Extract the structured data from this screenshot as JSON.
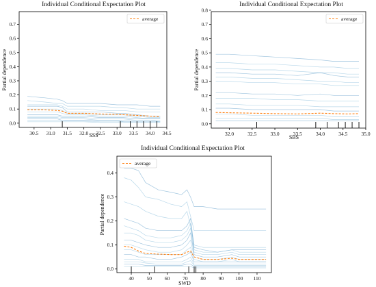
{
  "colors": {
    "ice": "#7fb8d8",
    "ice_dark": "#2c7fb8",
    "average": "#ff7f0e",
    "axis": "#000000"
  },
  "chart_data": [
    {
      "type": "line",
      "title": "Individual Conditional Expectation Plot",
      "xlabel": "SSS",
      "ylabel": "Partial dependence",
      "xlim": [
        30.05,
        34.5
      ],
      "ylim": [
        -0.03,
        0.79
      ],
      "xticks": [
        "30.5",
        "31.0",
        "31.5",
        "32.0",
        "32.5",
        "33.0",
        "33.5",
        "34.0",
        "34.5"
      ],
      "yticks": [
        "0.0",
        "0.1",
        "0.2",
        "0.3",
        "0.4",
        "0.5",
        "0.6",
        "0.7"
      ],
      "legend": {
        "label": "average",
        "placement": "top-right"
      },
      "x": [
        30.3,
        30.8,
        31.2,
        31.35,
        31.5,
        32.0,
        32.5,
        33.0,
        33.2,
        33.6,
        34.0,
        34.3
      ],
      "average": [
        0.095,
        0.095,
        0.09,
        0.085,
        0.07,
        0.07,
        0.065,
        0.062,
        0.06,
        0.055,
        0.05,
        0.045
      ],
      "series": [
        {
          "values": [
            0.19,
            0.18,
            0.17,
            0.16,
            0.14,
            0.14,
            0.14,
            0.13,
            0.13,
            0.13,
            0.12,
            0.12
          ]
        },
        {
          "values": [
            0.16,
            0.15,
            0.14,
            0.14,
            0.12,
            0.12,
            0.12,
            0.11,
            0.11,
            0.1,
            0.1,
            0.1
          ]
        },
        {
          "values": [
            0.13,
            0.13,
            0.13,
            0.12,
            0.1,
            0.1,
            0.09,
            0.09,
            0.09,
            0.08,
            0.08,
            0.08
          ]
        },
        {
          "values": [
            0.12,
            0.12,
            0.12,
            0.11,
            0.08,
            0.08,
            0.08,
            0.07,
            0.07,
            0.06,
            0.05,
            0.05
          ]
        },
        {
          "values": [
            0.1,
            0.1,
            0.1,
            0.09,
            0.07,
            0.07,
            0.06,
            0.06,
            0.06,
            0.05,
            0.04,
            0.04
          ]
        },
        {
          "values": [
            0.08,
            0.08,
            0.08,
            0.07,
            0.06,
            0.06,
            0.05,
            0.05,
            0.05,
            0.04,
            0.03,
            0.03
          ]
        },
        {
          "values": [
            0.06,
            0.06,
            0.06,
            0.05,
            0.05,
            0.05,
            0.04,
            0.04,
            0.04,
            0.03,
            0.03,
            0.03
          ]
        },
        {
          "values": [
            0.05,
            0.05,
            0.05,
            0.04,
            0.04,
            0.04,
            0.03,
            0.03,
            0.03,
            0.02,
            0.02,
            0.02
          ]
        },
        {
          "values": [
            0.04,
            0.04,
            0.04,
            0.03,
            0.03,
            0.03,
            0.02,
            0.02,
            0.02,
            0.02,
            0.02,
            0.01
          ]
        },
        {
          "values": [
            0.03,
            0.03,
            0.03,
            0.02,
            0.02,
            0.02,
            0.02,
            0.02,
            0.01,
            0.01,
            0.01,
            0.01
          ]
        },
        {
          "values": [
            0.02,
            0.02,
            0.02,
            0.02,
            0.015,
            0.015,
            0.01,
            0.01,
            0.01,
            0.01,
            0.01,
            0.01
          ]
        },
        {
          "values": [
            0.01,
            0.01,
            0.01,
            0.01,
            0.01,
            0.01,
            0.005,
            0.005,
            0.005,
            0.005,
            0.005,
            0.005
          ]
        }
      ],
      "rug": [
        31.35,
        33.1,
        33.4,
        33.6,
        33.8,
        34.0,
        34.2
      ]
    },
    {
      "type": "line",
      "title": "Individual Conditional Expectation Plot",
      "xlabel": "SBS",
      "ylabel": "Partial dependence",
      "xlim": [
        31.6,
        35.0
      ],
      "ylim": [
        -0.03,
        0.79
      ],
      "xticks": [
        "32.0",
        "32.5",
        "33.0",
        "33.5",
        "34.0",
        "34.5",
        "35.0"
      ],
      "yticks": [
        "0.0",
        "0.1",
        "0.2",
        "0.3",
        "0.4",
        "0.5",
        "0.6",
        "0.7",
        "0.8"
      ],
      "legend": {
        "label": "average",
        "placement": "top-right"
      },
      "x": [
        31.7,
        32.0,
        32.5,
        33.0,
        33.5,
        34.0,
        34.3,
        34.6,
        34.85
      ],
      "average": [
        0.08,
        0.078,
        0.075,
        0.072,
        0.07,
        0.075,
        0.072,
        0.07,
        0.072
      ],
      "series": [
        {
          "values": [
            0.49,
            0.49,
            0.48,
            0.47,
            0.46,
            0.45,
            0.44,
            0.44,
            0.44
          ]
        },
        {
          "values": [
            0.43,
            0.43,
            0.42,
            0.42,
            0.41,
            0.4,
            0.4,
            0.39,
            0.39
          ]
        },
        {
          "values": [
            0.39,
            0.39,
            0.38,
            0.38,
            0.37,
            0.36,
            0.36,
            0.35,
            0.35
          ]
        },
        {
          "values": [
            0.36,
            0.36,
            0.35,
            0.35,
            0.34,
            0.36,
            0.34,
            0.33,
            0.33
          ]
        },
        {
          "values": [
            0.33,
            0.33,
            0.32,
            0.32,
            0.31,
            0.3,
            0.3,
            0.29,
            0.29
          ]
        },
        {
          "values": [
            0.3,
            0.3,
            0.29,
            0.29,
            0.28,
            0.28,
            0.27,
            0.27,
            0.27
          ]
        },
        {
          "values": [
            0.22,
            0.22,
            0.21,
            0.21,
            0.2,
            0.21,
            0.2,
            0.2,
            0.2
          ]
        },
        {
          "values": [
            0.18,
            0.18,
            0.18,
            0.17,
            0.17,
            0.16,
            0.16,
            0.16,
            0.16
          ]
        },
        {
          "values": [
            0.14,
            0.14,
            0.13,
            0.13,
            0.13,
            0.12,
            0.12,
            0.12,
            0.12
          ]
        },
        {
          "values": [
            0.11,
            0.11,
            0.1,
            0.1,
            0.1,
            0.1,
            0.09,
            0.09,
            0.09
          ]
        },
        {
          "values": [
            0.07,
            0.07,
            0.06,
            0.06,
            0.06,
            0.06,
            0.05,
            0.05,
            0.05
          ]
        },
        {
          "values": [
            0.04,
            0.04,
            0.04,
            0.04,
            0.04,
            0.04,
            0.03,
            0.03,
            0.03
          ]
        },
        {
          "values": [
            0.02,
            0.02,
            0.02,
            0.02,
            0.02,
            0.02,
            0.02,
            0.02,
            0.02
          ]
        }
      ],
      "rug": [
        32.6,
        33.9,
        34.15,
        34.4,
        34.55,
        34.7,
        34.85
      ]
    },
    {
      "type": "line",
      "title": "Individual Conditional Expectation Plot",
      "xlabel": "SWD",
      "ylabel": "Partial dependence",
      "xlim": [
        32,
        118
      ],
      "ylim": [
        -0.015,
        0.47
      ],
      "xticks": [
        "40",
        "50",
        "60",
        "70",
        "80",
        "90",
        "100",
        "110"
      ],
      "yticks": [
        "0.0",
        "0.1",
        "0.2",
        "0.3",
        "0.4"
      ],
      "legend": {
        "label": "average",
        "placement": "top-left"
      },
      "x": [
        36,
        40,
        44,
        48,
        55,
        62,
        68,
        71,
        73,
        75,
        80,
        88,
        96,
        100,
        108,
        115
      ],
      "average": [
        0.095,
        0.09,
        0.075,
        0.065,
        0.062,
        0.06,
        0.06,
        0.07,
        0.075,
        0.05,
        0.04,
        0.04,
        0.045,
        0.04,
        0.04,
        0.04
      ],
      "series": [
        {
          "values": [
            0.42,
            0.42,
            0.41,
            0.36,
            0.33,
            0.32,
            0.31,
            0.33,
            0.3,
            0.26,
            0.26,
            0.25,
            0.25,
            0.25,
            0.25,
            0.25
          ]
        },
        {
          "values": [
            0.38,
            0.37,
            0.34,
            0.3,
            0.29,
            0.27,
            0.26,
            0.28,
            0.22,
            0.16,
            0.16,
            0.16,
            0.16,
            0.16,
            0.16,
            0.16
          ]
        },
        {
          "values": [
            0.28,
            0.27,
            0.26,
            0.24,
            0.22,
            0.21,
            0.21,
            0.24,
            0.18,
            0.1,
            0.09,
            0.09,
            0.09,
            0.09,
            0.09,
            0.09
          ]
        },
        {
          "values": [
            0.21,
            0.2,
            0.19,
            0.17,
            0.16,
            0.16,
            0.16,
            0.18,
            0.21,
            0.09,
            0.08,
            0.07,
            0.08,
            0.08,
            0.08,
            0.08
          ]
        },
        {
          "values": [
            0.18,
            0.17,
            0.16,
            0.14,
            0.13,
            0.13,
            0.14,
            0.16,
            0.19,
            0.08,
            0.07,
            0.07,
            0.08,
            0.07,
            0.07,
            0.07
          ]
        },
        {
          "values": [
            0.15,
            0.15,
            0.14,
            0.12,
            0.11,
            0.11,
            0.12,
            0.14,
            0.17,
            0.07,
            0.06,
            0.06,
            0.07,
            0.06,
            0.06,
            0.06
          ]
        },
        {
          "values": [
            0.12,
            0.12,
            0.11,
            0.1,
            0.09,
            0.09,
            0.1,
            0.12,
            0.15,
            0.06,
            0.05,
            0.05,
            0.06,
            0.05,
            0.05,
            0.05
          ]
        },
        {
          "values": [
            0.1,
            0.1,
            0.09,
            0.08,
            0.07,
            0.07,
            0.08,
            0.1,
            0.12,
            0.05,
            0.04,
            0.04,
            0.05,
            0.04,
            0.04,
            0.04
          ]
        },
        {
          "values": [
            0.08,
            0.08,
            0.07,
            0.06,
            0.06,
            0.06,
            0.06,
            0.08,
            0.09,
            0.04,
            0.03,
            0.03,
            0.04,
            0.03,
            0.03,
            0.03
          ]
        },
        {
          "values": [
            0.06,
            0.06,
            0.05,
            0.05,
            0.04,
            0.04,
            0.05,
            0.06,
            0.07,
            0.03,
            0.03,
            0.03,
            0.03,
            0.03,
            0.03,
            0.03
          ]
        },
        {
          "values": [
            0.04,
            0.04,
            0.04,
            0.03,
            0.03,
            0.03,
            0.03,
            0.04,
            0.05,
            0.02,
            0.02,
            0.02,
            0.02,
            0.02,
            0.02,
            0.02
          ]
        },
        {
          "values": [
            0.03,
            0.03,
            0.03,
            0.025,
            0.02,
            0.02,
            0.02,
            0.03,
            0.035,
            0.015,
            0.015,
            0.015,
            0.015,
            0.015,
            0.015,
            0.015
          ]
        },
        {
          "values": [
            0.02,
            0.02,
            0.02,
            0.015,
            0.015,
            0.015,
            0.015,
            0.02,
            0.02,
            0.01,
            0.01,
            0.01,
            0.01,
            0.01,
            0.01,
            0.01
          ]
        },
        {
          "values": [
            0.01,
            0.01,
            0.01,
            0.01,
            0.01,
            0.01,
            0.01,
            0.01,
            0.01,
            0.005,
            0.005,
            0.005,
            0.005,
            0.005,
            0.005,
            0.005
          ]
        }
      ],
      "rug": [
        40,
        53,
        72,
        75,
        76
      ]
    }
  ]
}
